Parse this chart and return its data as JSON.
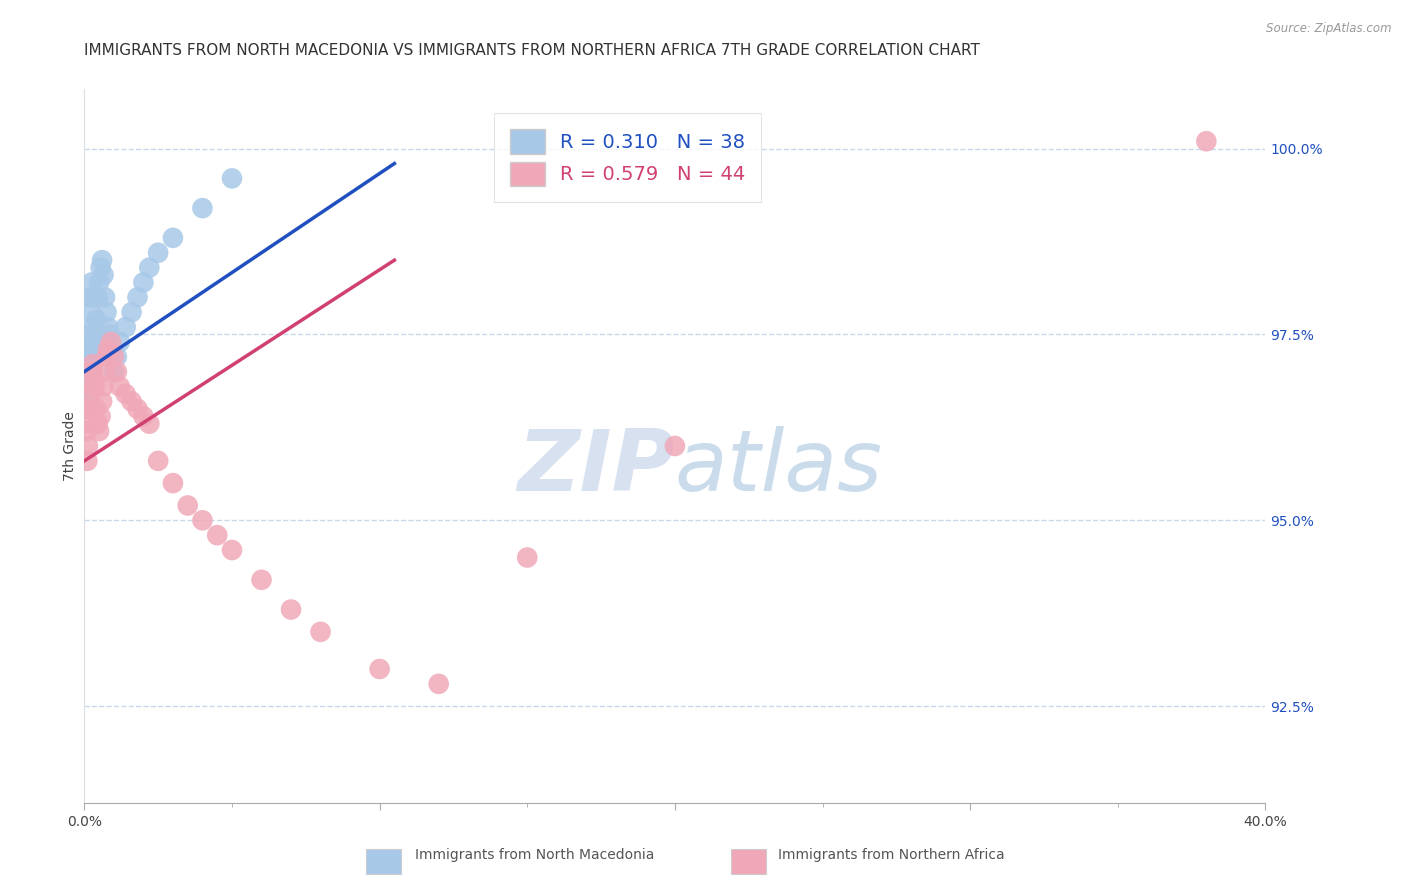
{
  "title": "IMMIGRANTS FROM NORTH MACEDONIA VS IMMIGRANTS FROM NORTHERN AFRICA 7TH GRADE CORRELATION CHART",
  "source": "Source: ZipAtlas.com",
  "ylabel_left": "7th Grade",
  "xlabel_legend1": "Immigrants from North Macedonia",
  "xlabel_legend2": "Immigrants from Northern Africa",
  "R1": 0.31,
  "N1": 38,
  "R2": 0.579,
  "N2": 44,
  "color1": "#a8c8e8",
  "color2": "#f0a8b8",
  "line_color1": "#2050c0",
  "line_color2": "#d04070",
  "xmin": 0.0,
  "xmax": 40.0,
  "ymin": 91.2,
  "ymax": 100.8,
  "ytick_values": [
    92.5,
    95.0,
    97.5,
    100.0
  ],
  "ytick_labels": [
    "92.5%",
    "95.0%",
    "97.5%",
    "100.0%"
  ],
  "blue_x": [
    0.05,
    0.08,
    0.1,
    0.12,
    0.15,
    0.18,
    0.2,
    0.22,
    0.25,
    0.28,
    0.3,
    0.32,
    0.35,
    0.38,
    0.4,
    0.45,
    0.5,
    0.55,
    0.6,
    0.65,
    0.7,
    0.75,
    0.8,
    0.85,
    0.9,
    0.95,
    1.0,
    1.1,
    1.2,
    1.4,
    1.6,
    1.8,
    2.0,
    2.2,
    2.5,
    3.0,
    4.0,
    5.0
  ],
  "blue_y": [
    97.3,
    97.0,
    96.8,
    96.7,
    97.2,
    97.5,
    97.8,
    98.0,
    98.2,
    98.0,
    97.6,
    97.4,
    97.3,
    97.5,
    97.7,
    98.0,
    98.2,
    98.4,
    98.5,
    98.3,
    98.0,
    97.8,
    97.6,
    97.5,
    97.3,
    97.2,
    97.0,
    97.2,
    97.4,
    97.6,
    97.8,
    98.0,
    98.2,
    98.4,
    98.6,
    98.8,
    99.2,
    99.6
  ],
  "pink_x": [
    0.05,
    0.08,
    0.1,
    0.12,
    0.15,
    0.18,
    0.2,
    0.22,
    0.25,
    0.28,
    0.3,
    0.35,
    0.4,
    0.45,
    0.5,
    0.55,
    0.6,
    0.65,
    0.7,
    0.75,
    0.8,
    0.9,
    1.0,
    1.1,
    1.2,
    1.4,
    1.6,
    1.8,
    2.0,
    2.2,
    2.5,
    3.0,
    3.5,
    4.0,
    4.5,
    5.0,
    6.0,
    7.0,
    8.0,
    10.0,
    12.0,
    15.0,
    20.0,
    38.0
  ],
  "pink_y": [
    96.5,
    96.2,
    95.8,
    96.0,
    96.3,
    96.5,
    96.7,
    96.8,
    97.0,
    97.1,
    97.0,
    96.8,
    96.5,
    96.3,
    96.2,
    96.4,
    96.6,
    96.8,
    97.0,
    97.2,
    97.3,
    97.4,
    97.2,
    97.0,
    96.8,
    96.7,
    96.6,
    96.5,
    96.4,
    96.3,
    95.8,
    95.5,
    95.2,
    95.0,
    94.8,
    94.6,
    94.2,
    93.8,
    93.5,
    93.0,
    92.8,
    94.5,
    96.0,
    100.1
  ],
  "blue_line_x0": 0.0,
  "blue_line_y0": 97.0,
  "blue_line_x1": 10.5,
  "blue_line_y1": 99.8,
  "pink_line_x0": 0.0,
  "pink_line_y0": 95.8,
  "pink_line_x1": 10.5,
  "pink_line_y1": 98.5,
  "watermark_zip": "ZIP",
  "watermark_atlas": "atlas",
  "background_color": "#ffffff",
  "grid_color": "#c8d8ec",
  "title_fontsize": 11,
  "axis_label_fontsize": 10,
  "tick_fontsize": 10,
  "legend_fontsize": 14
}
